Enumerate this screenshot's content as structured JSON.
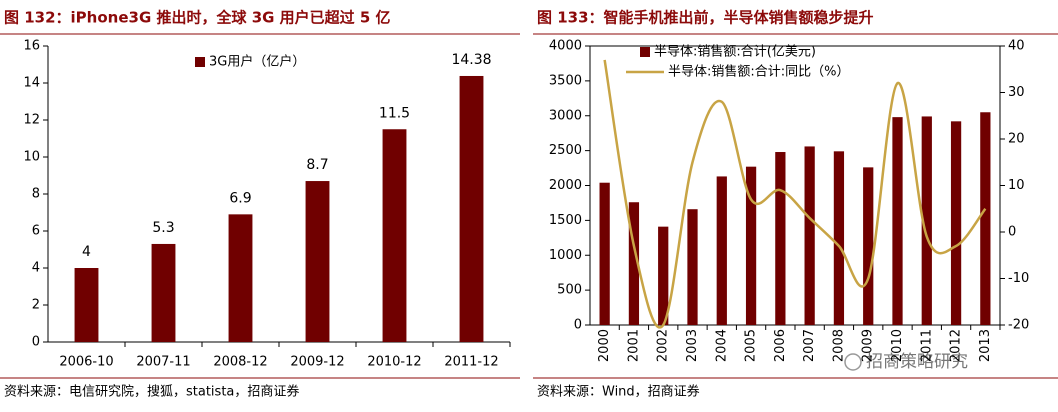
{
  "chart_data": [
    {
      "type": "bar",
      "title": "图 132：iPhone3G 推出时，全球 3G 用户已超过 5 亿",
      "categories": [
        "2006-10",
        "2007-11",
        "2008-12",
        "2009-12",
        "2010-12",
        "2011-12"
      ],
      "series": [
        {
          "name": "3G用户（亿户）",
          "color": "#700000",
          "values": [
            4,
            5.3,
            6.9,
            8.7,
            11.5,
            14.38
          ]
        }
      ],
      "data_labels": true,
      "ylim": [
        0,
        16
      ],
      "yticks": [
        0,
        2,
        4,
        6,
        8,
        10,
        12,
        14,
        16
      ],
      "source": "资料来源：电信研究院，搜狐，statista，招商证券"
    },
    {
      "type": "bar",
      "title": "图 133：智能手机推出前，半导体销售额稳步提升",
      "categories": [
        "2000",
        "2001",
        "2002",
        "2003",
        "2004",
        "2005",
        "2006",
        "2007",
        "2008",
        "2009",
        "2010",
        "2011",
        "2012",
        "2013"
      ],
      "series": [
        {
          "name": "半导体:销售额:合计(亿美元)",
          "color": "#700000",
          "values": [
            2040,
            1760,
            1410,
            1660,
            2130,
            2270,
            2480,
            2560,
            2490,
            2260,
            2980,
            2990,
            2920,
            3050
          ]
        },
        {
          "name": "半导体:销售额:合计:同比（%）",
          "type": "line",
          "axis": "y2",
          "color": "#c8a445",
          "values": [
            37,
            -3,
            -20,
            15,
            28,
            7,
            9,
            3,
            -3,
            -10,
            32,
            -1,
            -3,
            5
          ]
        }
      ],
      "ylim": [
        0,
        4000
      ],
      "yticks": [
        0,
        500,
        1000,
        1500,
        2000,
        2500,
        3000,
        3500,
        4000
      ],
      "y2lim": [
        -20,
        40
      ],
      "y2ticks": [
        -20,
        -10,
        0,
        10,
        20,
        30,
        40
      ],
      "watermark": "招商策略研究",
      "source": "资料来源：Wind，招商证券"
    }
  ]
}
